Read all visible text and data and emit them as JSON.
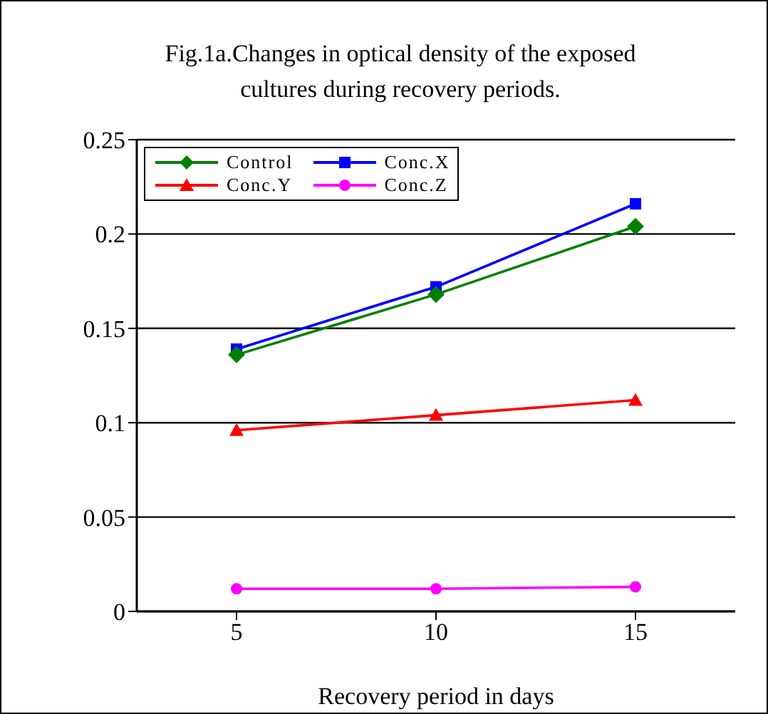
{
  "chart_data": {
    "type": "line",
    "title": "Fig.1a.Changes in optical density of the exposed cultures during recovery periods.",
    "xlabel": "Recovery period in days",
    "categories": [
      "5",
      "10",
      "15"
    ],
    "series": [
      {
        "name": "Control",
        "color": "#008000",
        "marker": "diamond",
        "values": [
          0.136,
          0.168,
          0.204
        ]
      },
      {
        "name": "Conc.X",
        "color": "#0000ff",
        "marker": "square",
        "values": [
          0.139,
          0.172,
          0.216
        ]
      },
      {
        "name": "Conc.Y",
        "color": "#ff0000",
        "marker": "triangle",
        "values": [
          0.096,
          0.104,
          0.112
        ]
      },
      {
        "name": "Conc.Z",
        "color": "#ff00ff",
        "marker": "circle",
        "values": [
          0.012,
          0.012,
          0.013
        ]
      }
    ],
    "ylim": [
      0,
      0.25
    ],
    "yticks": [
      0,
      0.05,
      0.1,
      0.15,
      0.2,
      0.25
    ],
    "grid": "y",
    "legend": "top left"
  }
}
